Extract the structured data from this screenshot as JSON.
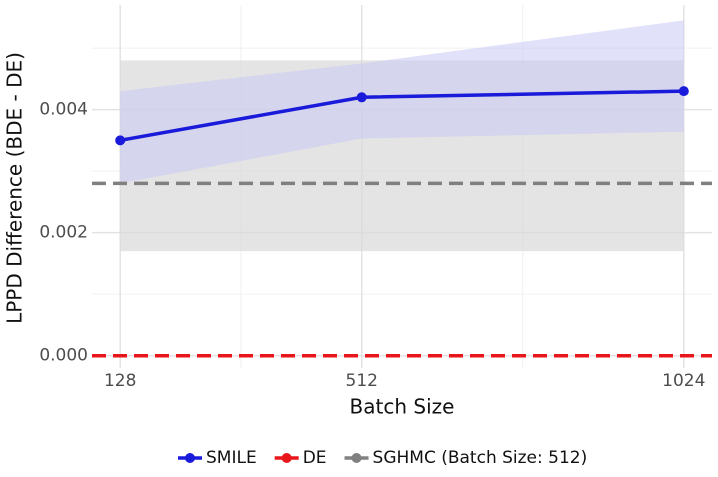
{
  "chart_data": {
    "type": "line",
    "x_label": "Batch Size",
    "y_label": "LPPD Difference (BDE - DE)",
    "x": [
      128,
      512,
      1024
    ],
    "xlim": [
      83.2,
      1068.8
    ],
    "xticks": [
      128,
      512,
      1024
    ],
    "xminor": [
      320,
      768
    ],
    "ylim": [
      -0.0002,
      0.0057
    ],
    "yticks": [
      {
        "value": 0,
        "label": "0.000"
      },
      {
        "value": 0.002,
        "label": "0.002"
      },
      {
        "value": 0.004,
        "label": "0.004"
      }
    ],
    "yminor": [
      0.001,
      0.003,
      0.005
    ],
    "grid": true,
    "legend": "bottom",
    "series": [
      {
        "name": "SMILE",
        "color": "#1a1adb",
        "values": [
          0.0035,
          0.0042,
          0.0043
        ],
        "lower": [
          0.0028,
          0.00353,
          0.00364
        ],
        "upper": [
          0.0043,
          0.00475,
          0.00545
        ],
        "band_color": "#c8c8f5"
      }
    ],
    "hlines": [
      {
        "name": "DE",
        "color": "#e8161a",
        "value": 0
      },
      {
        "name": "SGHMC (Batch Size: 512)",
        "color": "#808080",
        "value": 0.0028,
        "lower": 0.0017,
        "upper": 0.0048,
        "band_color": "#d9d9d9"
      }
    ]
  }
}
